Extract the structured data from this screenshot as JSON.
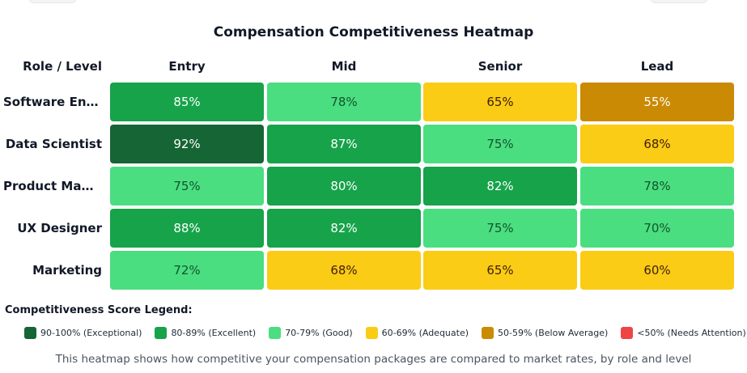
{
  "chart_data": {
    "type": "heatmap",
    "title": "Compensation Competitiveness Heatmap",
    "corner_header": "Role / Level",
    "columns": [
      "Entry",
      "Mid",
      "Senior",
      "Lead"
    ],
    "rows": [
      {
        "label": "Software Engi...",
        "values": [
          85,
          78,
          65,
          55
        ]
      },
      {
        "label": "Data Scientist",
        "values": [
          92,
          87,
          75,
          68
        ]
      },
      {
        "label": "Product Mana...",
        "values": [
          75,
          80,
          82,
          78
        ]
      },
      {
        "label": "UX Designer",
        "values": [
          88,
          82,
          75,
          70
        ]
      },
      {
        "label": "Marketing",
        "values": [
          72,
          68,
          65,
          60
        ]
      }
    ],
    "value_suffix": "%",
    "color_scale": [
      {
        "min": 90,
        "color": "#166534",
        "text_color": "#ffffff"
      },
      {
        "min": 80,
        "color": "#16a34a",
        "text_color": "#ffffff"
      },
      {
        "min": 70,
        "color": "#4ade80",
        "text_color": "#14532d"
      },
      {
        "min": 60,
        "color": "#facc15",
        "text_color": "#422006"
      },
      {
        "min": 50,
        "color": "#ca8a04",
        "text_color": "#ffffff"
      },
      {
        "min": 0,
        "color": "#ef4444",
        "text_color": "#ffffff"
      }
    ],
    "legend_title": "Competitiveness Score Legend:",
    "legend": [
      {
        "label": "90-100% (Exceptional)",
        "color": "#166534"
      },
      {
        "label": "80-89% (Excellent)",
        "color": "#16a34a"
      },
      {
        "label": "70-79% (Good)",
        "color": "#4ade80"
      },
      {
        "label": "60-69% (Adequate)",
        "color": "#facc15"
      },
      {
        "label": "50-59% (Below Average)",
        "color": "#ca8a04"
      },
      {
        "label": "<50% (Needs Attention)",
        "color": "#ef4444"
      }
    ],
    "footnote": "This heatmap shows how competitive your compensation packages are compared to market rates, by role and level"
  }
}
